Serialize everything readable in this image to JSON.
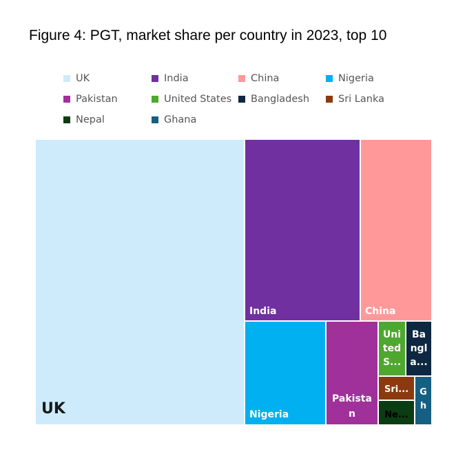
{
  "title": "Figure 4: PGT, market share per country in 2023, top 10",
  "chart_data": {
    "type": "treemap",
    "title": "Figure 4: PGT, market share per country in 2023, top 10",
    "legend_position": "top",
    "items": [
      {
        "name": "UK",
        "label": "UK",
        "value": 42.5,
        "color": "#CDEBFA",
        "text_color": "#1a1a1a"
      },
      {
        "name": "India",
        "label": "India",
        "value": 18.8,
        "color": "#7030A0",
        "text_color": "#ffffff"
      },
      {
        "name": "China",
        "label": "China",
        "value": 11.5,
        "color": "#FF9999",
        "text_color": "#ffffff"
      },
      {
        "name": "Nigeria",
        "label": "Nigeria",
        "value": 7.8,
        "color": "#00B0F0",
        "text_color": "#ffffff"
      },
      {
        "name": "Pakistan",
        "label": "Pakista n",
        "value": 5.9,
        "color": "#A0309A",
        "text_color": "#ffffff"
      },
      {
        "name": "United States",
        "label": "Uni ted S...",
        "value": 2.3,
        "color": "#4EA72E",
        "text_color": "#ffffff"
      },
      {
        "name": "Bangladesh",
        "label": "Ba ngl a...",
        "value": 2.0,
        "color": "#0E2841",
        "text_color": "#ffffff"
      },
      {
        "name": "Sri Lanka",
        "label": "Sri...",
        "value": 1.0,
        "color": "#8B3A0F",
        "text_color": "#ffffff"
      },
      {
        "name": "Nepal",
        "label": "Ne...",
        "value": 0.9,
        "color": "#0B3D12",
        "text_color": "#ffffff"
      },
      {
        "name": "Ghana",
        "label": "G h",
        "value": 0.8,
        "color": "#156082",
        "text_color": "#ffffff"
      }
    ]
  }
}
